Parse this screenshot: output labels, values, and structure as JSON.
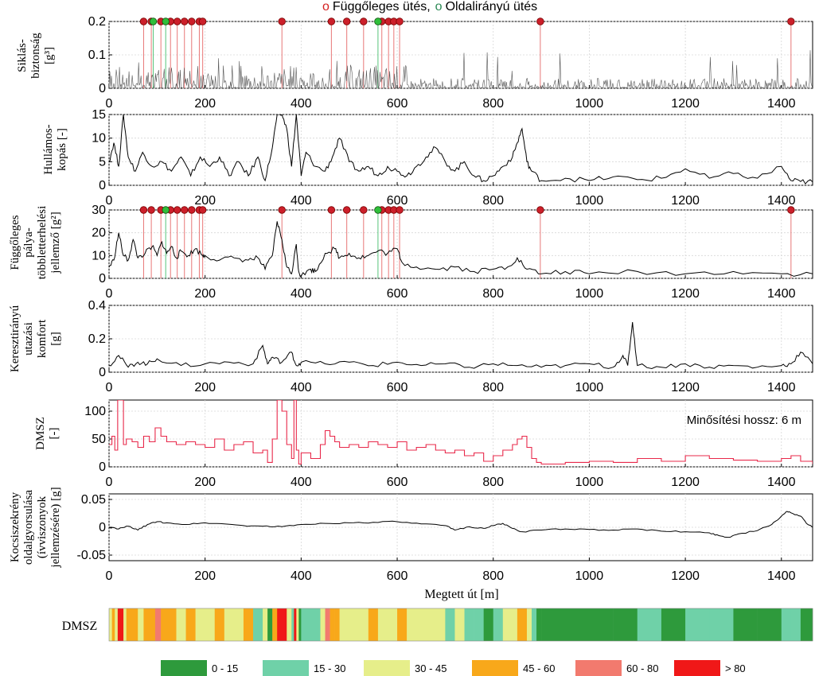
{
  "figure_title": {
    "marker_red": "o",
    "text_red": "Függőleges ütés,",
    "marker_green": "o",
    "text_green": "Oldalirányú ütés"
  },
  "x_axis": {
    "label": "Megtett út [m]",
    "range": [
      0,
      1465
    ],
    "ticks": [
      0,
      200,
      400,
      600,
      800,
      1000,
      1200,
      1400
    ]
  },
  "colors": {
    "signal": "#000000",
    "dmsz_line": "#e8284a",
    "vertical_impact": "#cc1f2a",
    "lateral_impact": "#2fbf3a",
    "impact_line_red": "#e87777",
    "impact_line_green": "#56c47a",
    "gridline": "#d6d6d6"
  },
  "chart_data": [
    {
      "type": "line",
      "panel": "siklasbiztonsag",
      "ylabel_lines": [
        "Siklás-",
        "biztonság",
        "[g³]"
      ],
      "ylim": [
        0,
        0.2
      ],
      "yticks": [
        "0",
        "0.1",
        "0.2"
      ],
      "grid": true,
      "series": [
        {
          "x_range": [
            0,
            1465
          ],
          "style": "dense noisy trace"
        }
      ],
      "vertical_impacts_x": [
        72,
        88,
        108,
        128,
        142,
        157,
        172,
        188,
        195,
        360,
        463,
        495,
        530,
        568,
        582,
        593,
        605,
        898,
        1420
      ],
      "lateral_impacts_x": [
        92,
        118,
        560
      ]
    },
    {
      "type": "line",
      "panel": "hullamoskopas",
      "ylabel_lines": [
        "Hullámos-",
        "kopás [-]"
      ],
      "ylim": [
        0,
        15
      ],
      "yticks": [
        "0",
        "5",
        "10",
        "15"
      ],
      "grid": true,
      "series": [
        {
          "x": [
            0,
            10,
            20,
            30,
            40,
            55,
            70,
            90,
            110,
            130,
            150,
            170,
            190,
            210,
            230,
            250,
            270,
            290,
            310,
            325,
            340,
            350,
            360,
            370,
            380,
            390,
            400,
            410,
            430,
            450,
            465,
            480,
            500,
            520,
            540,
            560,
            580,
            600,
            620,
            640,
            660,
            680,
            700,
            720,
            740,
            760,
            780,
            800,
            820,
            840,
            850,
            860,
            870,
            880,
            900,
            950,
            1000,
            1050,
            1100,
            1150,
            1200,
            1250,
            1300,
            1350,
            1400,
            1420,
            1440,
            1465
          ],
          "y": [
            5,
            9,
            4,
            15,
            6,
            3,
            7,
            4,
            5,
            3,
            6,
            2,
            6,
            4,
            6,
            2,
            5,
            2,
            6,
            1,
            8,
            15,
            15,
            12,
            4,
            15,
            2,
            7,
            4,
            3,
            6,
            10,
            5,
            3,
            4,
            2,
            4,
            3,
            2,
            4,
            6,
            8,
            5,
            3,
            5,
            2,
            1,
            2,
            4,
            6,
            9,
            12,
            5,
            3,
            1,
            1.5,
            1,
            1.8,
            1.2,
            1.5,
            3.5,
            1.5,
            2.5,
            1.5,
            4,
            1,
            0.8,
            0.7
          ]
        }
      ]
    },
    {
      "type": "line",
      "panel": "fuggoleges_palya",
      "ylabel_lines": [
        "Függőleges",
        "pálya-",
        "többletterhelési",
        "jellemző [g²]"
      ],
      "ylim": [
        0,
        30
      ],
      "yticks": [
        "0",
        "10",
        "20",
        "30"
      ],
      "grid": true,
      "series": [
        {
          "x": [
            0,
            10,
            20,
            30,
            40,
            50,
            60,
            75,
            90,
            100,
            110,
            120,
            130,
            140,
            150,
            165,
            180,
            195,
            200,
            230,
            260,
            290,
            310,
            325,
            340,
            350,
            360,
            370,
            380,
            390,
            395,
            400,
            420,
            430,
            450,
            470,
            480,
            500,
            520,
            540,
            560,
            580,
            600,
            610,
            640,
            680,
            720,
            760,
            800,
            830,
            850,
            870,
            900,
            950,
            1000,
            1100,
            1200,
            1300,
            1400,
            1465
          ],
          "y": [
            5,
            8,
            20,
            10,
            8,
            17,
            9,
            11,
            14,
            10,
            16,
            11,
            14,
            9,
            12,
            10,
            13,
            10,
            10,
            8,
            9,
            8,
            9,
            4,
            10,
            25,
            17,
            5,
            2,
            15,
            3,
            1,
            4,
            3,
            11,
            13,
            9,
            11,
            9,
            10,
            12,
            11,
            13,
            7,
            5,
            4,
            5,
            3,
            4,
            5,
            9,
            4,
            2,
            3,
            2,
            3,
            2,
            3,
            2,
            2
          ]
        }
      ],
      "vertical_impacts_x": [
        72,
        88,
        108,
        128,
        142,
        157,
        172,
        188,
        195,
        360,
        463,
        495,
        530,
        568,
        582,
        593,
        605,
        898,
        1420
      ],
      "lateral_impacts_x": [
        118,
        560
      ]
    },
    {
      "type": "line",
      "panel": "keresztiranyu_komfort",
      "ylabel_lines": [
        "Keresztirányú",
        "utazási",
        "komfort",
        "[g]"
      ],
      "ylim": [
        0,
        0.4
      ],
      "yticks": [
        "0",
        "0.2",
        "0.4"
      ],
      "grid": true,
      "series": [
        {
          "x": [
            0,
            20,
            40,
            60,
            80,
            100,
            150,
            200,
            250,
            300,
            320,
            330,
            340,
            360,
            380,
            390,
            400,
            450,
            500,
            550,
            600,
            650,
            700,
            750,
            800,
            850,
            900,
            950,
            1000,
            1050,
            1070,
            1080,
            1090,
            1100,
            1150,
            1200,
            1250,
            1300,
            1350,
            1400,
            1420,
            1440,
            1465
          ],
          "y": [
            0.04,
            0.1,
            0.03,
            0.06,
            0.05,
            0.08,
            0.04,
            0.05,
            0.06,
            0.05,
            0.16,
            0.05,
            0.09,
            0.06,
            0.12,
            0.04,
            0.06,
            0.05,
            0.06,
            0.04,
            0.06,
            0.04,
            0.05,
            0.03,
            0.05,
            0.04,
            0.03,
            0.04,
            0.05,
            0.03,
            0.1,
            0.04,
            0.3,
            0.04,
            0.03,
            0.05,
            0.03,
            0.04,
            0.03,
            0.04,
            0.05,
            0.12,
            0.05
          ]
        }
      ]
    },
    {
      "type": "line",
      "panel": "dmsz",
      "ylabel_lines": [
        "DMSZ",
        "[-]"
      ],
      "ylim": [
        0,
        120
      ],
      "yticks": [
        "0",
        "50",
        "100"
      ],
      "grid": true,
      "annotation": "Minősítési hossz: 6 m",
      "series": [
        {
          "x": [
            0,
            6,
            12,
            18,
            24,
            30,
            36,
            48,
            60,
            72,
            84,
            96,
            108,
            120,
            140,
            160,
            180,
            200,
            220,
            240,
            260,
            280,
            300,
            320,
            330,
            340,
            350,
            360,
            370,
            380,
            385,
            390,
            395,
            400,
            420,
            440,
            450,
            460,
            470,
            480,
            500,
            520,
            540,
            560,
            580,
            600,
            620,
            640,
            660,
            680,
            700,
            720,
            740,
            760,
            780,
            800,
            820,
            840,
            850,
            860,
            870,
            880,
            890,
            900,
            950,
            1000,
            1050,
            1100,
            1150,
            1200,
            1250,
            1300,
            1350,
            1400,
            1420,
            1440,
            1465
          ],
          "y": [
            40,
            55,
            30,
            120,
            120,
            40,
            50,
            45,
            35,
            55,
            45,
            70,
            55,
            45,
            40,
            45,
            40,
            35,
            50,
            30,
            40,
            45,
            25,
            30,
            8,
            50,
            120,
            100,
            40,
            15,
            120,
            30,
            5,
            25,
            15,
            40,
            65,
            55,
            45,
            35,
            40,
            35,
            45,
            40,
            35,
            45,
            30,
            35,
            40,
            30,
            25,
            30,
            20,
            25,
            10,
            20,
            30,
            40,
            50,
            55,
            35,
            15,
            8,
            5,
            8,
            10,
            8,
            15,
            10,
            20,
            15,
            12,
            10,
            15,
            20,
            10,
            5
          ]
        }
      ]
    },
    {
      "type": "line",
      "panel": "kocsiszekreny",
      "ylabel_lines": [
        "Kocsiszekrény",
        "oldalgyorsulása",
        "(ívviszonyok",
        "jellemzésére) [g]"
      ],
      "ylim": [
        -0.06,
        0.06
      ],
      "yticks": [
        "-0.05",
        "0",
        "0.05"
      ],
      "grid": true,
      "series": [
        {
          "x": [
            0,
            20,
            40,
            60,
            80,
            100,
            120,
            160,
            200,
            240,
            280,
            320,
            360,
            400,
            450,
            500,
            550,
            600,
            650,
            700,
            720,
            750,
            780,
            800,
            820,
            840,
            860,
            900,
            950,
            1000,
            1050,
            1100,
            1150,
            1200,
            1250,
            1270,
            1290,
            1310,
            1350,
            1380,
            1400,
            1410,
            1420,
            1440,
            1455,
            1465
          ],
          "y": [
            0,
            -0.003,
            0.002,
            -0.005,
            0.005,
            0.01,
            0.008,
            0.005,
            0.008,
            0.006,
            0.003,
            0.002,
            0.001,
            0.005,
            0.007,
            0.008,
            0.009,
            0.01,
            0.006,
            0.003,
            -0.005,
            0.001,
            -0.002,
            0.003,
            0.007,
            -0.002,
            -0.008,
            -0.005,
            -0.003,
            -0.004,
            -0.005,
            -0.003,
            -0.007,
            -0.008,
            -0.01,
            -0.015,
            -0.018,
            -0.012,
            -0.006,
            0.005,
            0.02,
            0.028,
            0.026,
            0.02,
            0.005,
            0
          ]
        }
      ]
    },
    {
      "type": "heatmap",
      "panel": "dmsz_strip",
      "label": "DMSZ",
      "segments_x": [
        0,
        6,
        12,
        18,
        24,
        30,
        36,
        48,
        60,
        72,
        84,
        96,
        108,
        120,
        140,
        160,
        180,
        200,
        220,
        240,
        260,
        280,
        300,
        320,
        330,
        340,
        350,
        360,
        370,
        380,
        385,
        390,
        395,
        400,
        420,
        440,
        450,
        460,
        470,
        480,
        500,
        520,
        540,
        560,
        580,
        600,
        620,
        640,
        660,
        680,
        700,
        720,
        740,
        760,
        780,
        800,
        820,
        840,
        850,
        860,
        870,
        880,
        890,
        900,
        950,
        1000,
        1050,
        1100,
        1150,
        1200,
        1250,
        1300,
        1350,
        1400,
        1420,
        1440,
        1465
      ],
      "segment_values": [
        40,
        55,
        30,
        120,
        120,
        40,
        50,
        45,
        35,
        55,
        45,
        70,
        55,
        45,
        40,
        45,
        40,
        35,
        50,
        30,
        40,
        45,
        25,
        30,
        8,
        50,
        120,
        100,
        40,
        15,
        120,
        30,
        5,
        25,
        15,
        40,
        65,
        55,
        45,
        35,
        40,
        35,
        45,
        40,
        35,
        45,
        30,
        35,
        40,
        30,
        25,
        30,
        20,
        25,
        10,
        20,
        30,
        40,
        50,
        55,
        35,
        15,
        8,
        5,
        8,
        10,
        8,
        15,
        10,
        20,
        15,
        12,
        10,
        15,
        20,
        10
      ]
    }
  ],
  "legend": [
    {
      "label": "0 - 15",
      "color": "#2e9a3c",
      "min": 0,
      "max": 15
    },
    {
      "label": "15 - 30",
      "color": "#6fd1a8",
      "min": 15,
      "max": 30
    },
    {
      "label": "30 - 45",
      "color": "#e6ee8a",
      "min": 30,
      "max": 45
    },
    {
      "label": "45 - 60",
      "color": "#f8a81a",
      "min": 45,
      "max": 60
    },
    {
      "label": "60 - 80",
      "color": "#f27a6e",
      "min": 60,
      "max": 80
    },
    {
      "label": "> 80",
      "color": "#f01818",
      "min": 80,
      "max": 1000
    }
  ]
}
